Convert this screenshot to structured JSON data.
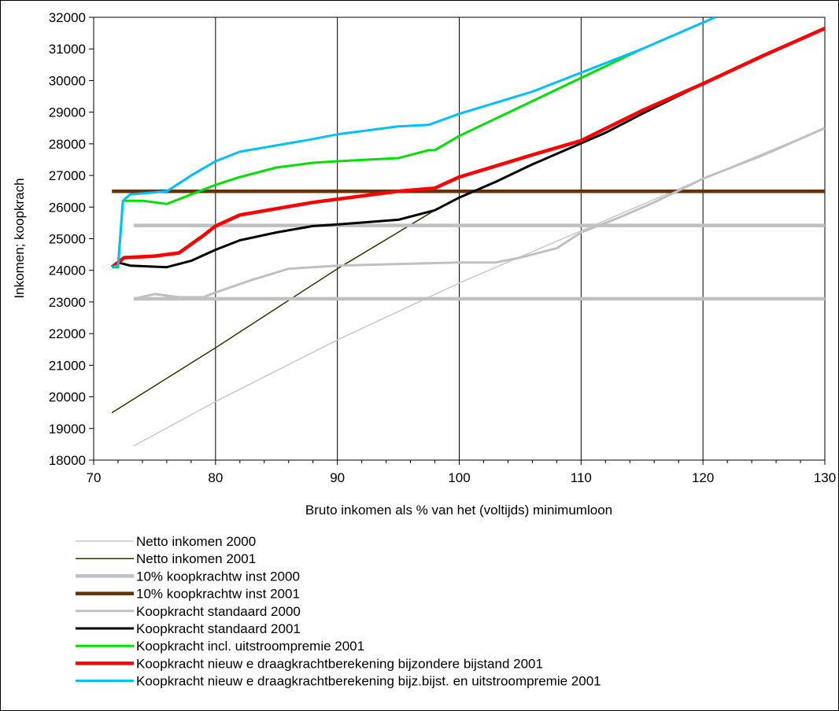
{
  "chart_data": {
    "type": "line",
    "title": "",
    "xlabel": "Bruto inkomen als % van het (voltijds) minimumloon",
    "ylabel": "Inkomen; koopkrach",
    "xlim": [
      70,
      130
    ],
    "ylim": [
      18000,
      32000
    ],
    "x_ticks": [
      70,
      80,
      90,
      100,
      110,
      120,
      130
    ],
    "y_ticks": [
      18000,
      19000,
      20000,
      21000,
      22000,
      23000,
      24000,
      25000,
      26000,
      27000,
      28000,
      29000,
      30000,
      31000,
      32000
    ],
    "grid": {
      "vertical": true,
      "horizontal": false
    },
    "legend_position": "bottom",
    "series": [
      {
        "name": "Netto inkomen 2000",
        "color": "#c8c8c8",
        "width": 1.5,
        "points": [
          [
            73.3,
            18450
          ],
          [
            80,
            19850
          ],
          [
            90,
            21800
          ],
          [
            100,
            23600
          ],
          [
            110,
            25250
          ],
          [
            120,
            26900
          ],
          [
            130,
            28500
          ]
        ]
      },
      {
        "name": "Netto inkomen 2001",
        "color": "#333300",
        "width": 1.5,
        "points": [
          [
            71.5,
            19500
          ],
          [
            80,
            21550
          ],
          [
            90,
            24050
          ],
          [
            98,
            25900
          ]
        ]
      },
      {
        "name": "10% koopkrachtw inst 2000",
        "color": "#c0c0c0",
        "width": 4.5,
        "points": [
          [
            73.3,
            23100
          ],
          [
            130,
            23100
          ],
          [
            130,
            null
          ],
          [
            73.3,
            25420
          ],
          [
            130,
            25420
          ]
        ]
      },
      {
        "name": "10% koopkrachtw inst 2001",
        "color": "#663300",
        "width": 4.5,
        "points": [
          [
            71.5,
            26500
          ],
          [
            130,
            26500
          ]
        ]
      },
      {
        "name": "Koopkracht standaard 2000",
        "color": "#c0c0c0",
        "width": 3,
        "points": [
          [
            73.3,
            23100
          ],
          [
            75,
            23250
          ],
          [
            77,
            23150
          ],
          [
            79,
            23150
          ],
          [
            80,
            23300
          ],
          [
            83,
            23700
          ],
          [
            86,
            24050
          ],
          [
            88,
            24100
          ],
          [
            90,
            24150
          ],
          [
            100,
            24250
          ],
          [
            103,
            24250
          ],
          [
            105,
            24400
          ],
          [
            108,
            24700
          ],
          [
            110,
            25200
          ],
          [
            113,
            25650
          ],
          [
            116,
            26150
          ],
          [
            120,
            26900
          ],
          [
            125,
            27650
          ],
          [
            130,
            28500
          ]
        ]
      },
      {
        "name": "Koopkracht standaard 2001",
        "color": "#000000",
        "width": 3,
        "points": [
          [
            71.5,
            24100
          ],
          [
            72,
            24250
          ],
          [
            73,
            24150
          ],
          [
            76,
            24100
          ],
          [
            78,
            24300
          ],
          [
            80,
            24650
          ],
          [
            82,
            24950
          ],
          [
            85,
            25200
          ],
          [
            88,
            25400
          ],
          [
            90,
            25450
          ],
          [
            95,
            25600
          ],
          [
            97.5,
            25850
          ],
          [
            98,
            25900
          ],
          [
            100,
            26300
          ],
          [
            103,
            26800
          ],
          [
            106,
            27350
          ],
          [
            109,
            27850
          ],
          [
            112,
            28350
          ],
          [
            115,
            28950
          ],
          [
            120,
            29900
          ],
          [
            125,
            30800
          ],
          [
            130,
            31650
          ]
        ]
      },
      {
        "name": "Koopkracht incl. uitstroompremie 2001",
        "color": "#00e000",
        "width": 3,
        "points": [
          [
            71.5,
            24100
          ],
          [
            72,
            24100
          ],
          [
            72.4,
            26200
          ],
          [
            74,
            26200
          ],
          [
            76,
            26100
          ],
          [
            78,
            26400
          ],
          [
            80,
            26700
          ],
          [
            82,
            26950
          ],
          [
            85,
            27250
          ],
          [
            88,
            27400
          ],
          [
            90,
            27450
          ],
          [
            95,
            27550
          ],
          [
            97.5,
            27800
          ],
          [
            98,
            27800
          ],
          [
            100,
            28250
          ],
          [
            103,
            28800
          ],
          [
            106,
            29350
          ],
          [
            109,
            29900
          ],
          [
            112,
            30450
          ],
          [
            115,
            31000
          ]
        ]
      },
      {
        "name": "Koopkracht nieuw e draagkrachtberekening bijzondere bijstand 2001",
        "color": "#ff0000",
        "width": 4.5,
        "points": [
          [
            71.5,
            24100
          ],
          [
            72.5,
            24400
          ],
          [
            75,
            24450
          ],
          [
            77,
            24550
          ],
          [
            79,
            25100
          ],
          [
            80,
            25400
          ],
          [
            82,
            25750
          ],
          [
            85,
            25950
          ],
          [
            88,
            26150
          ],
          [
            90,
            26250
          ],
          [
            93,
            26400
          ],
          [
            95,
            26500
          ],
          [
            98,
            26600
          ],
          [
            100,
            26950
          ],
          [
            103,
            27300
          ],
          [
            106,
            27650
          ],
          [
            110,
            28100
          ],
          [
            115,
            29050
          ],
          [
            120,
            29900
          ],
          [
            125,
            30800
          ],
          [
            130,
            31650
          ]
        ]
      },
      {
        "name": "Koopkracht nieuw e draagkrachtberekening bijz.bijst. en uitstroompremie 2001",
        "color": "#00bfff",
        "width": 3,
        "points": [
          [
            71.5,
            24100
          ],
          [
            72,
            24150
          ],
          [
            72.4,
            26200
          ],
          [
            73,
            26400
          ],
          [
            76,
            26500
          ],
          [
            78,
            27000
          ],
          [
            80,
            27450
          ],
          [
            82,
            27750
          ],
          [
            85,
            27950
          ],
          [
            88,
            28150
          ],
          [
            90,
            28300
          ],
          [
            93,
            28450
          ],
          [
            95,
            28550
          ],
          [
            97.5,
            28600
          ],
          [
            100,
            28950
          ],
          [
            103,
            29300
          ],
          [
            106,
            29650
          ],
          [
            110,
            30250
          ],
          [
            115,
            31000
          ],
          [
            118,
            31500
          ],
          [
            121,
            32000
          ]
        ]
      }
    ]
  }
}
